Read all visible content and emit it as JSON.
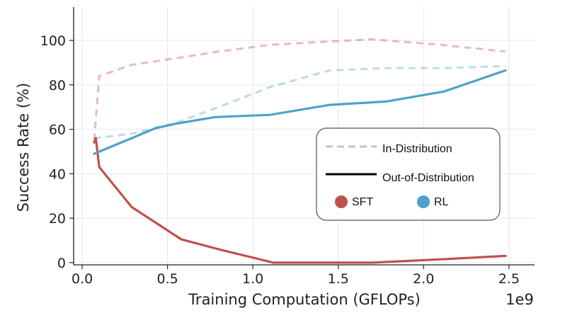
{
  "chart_data": {
    "type": "line",
    "xlabel": "Training Computation (GFLOPs)",
    "ylabel": "Success Rate (%)",
    "x_scale_label": "1e9",
    "xlim": [
      -0.05,
      2.65
    ],
    "ylim": [
      -1,
      115
    ],
    "xticks": [
      0.0,
      0.5,
      1.0,
      1.5,
      2.0,
      2.5
    ],
    "xtick_labels": [
      "0.0",
      "0.5",
      "1.0",
      "1.5",
      "2.0",
      "2.5"
    ],
    "yticks": [
      0,
      20,
      40,
      60,
      80,
      100
    ],
    "ytick_labels": [
      "0",
      "20",
      "40",
      "60",
      "80",
      "100"
    ],
    "grid": true,
    "colors": {
      "SFT": "#c0504d",
      "RL": "#4fa1c9"
    },
    "series": [
      {
        "method": "SFT",
        "split": "In-Distribution",
        "style": "dashed",
        "x": [
          0.07,
          0.1,
          0.29,
          0.55,
          0.8,
          1.1,
          1.45,
          1.7,
          2.1,
          2.48
        ],
        "y": [
          55,
          84,
          89,
          92,
          95,
          98,
          99.5,
          100.5,
          98,
          95
        ]
      },
      {
        "method": "SFT",
        "split": "Out-of-Distribution",
        "style": "solid",
        "x": [
          0.07,
          0.08,
          0.1,
          0.29,
          0.58,
          0.8,
          1.12,
          1.45,
          1.7,
          2.1,
          2.48
        ],
        "y": [
          54,
          56,
          43,
          25,
          10.5,
          6,
          0,
          0,
          0,
          1.5,
          3
        ]
      },
      {
        "method": "RL",
        "split": "In-Distribution",
        "style": "dashed",
        "x": [
          0.07,
          0.29,
          0.55,
          0.8,
          1.1,
          1.45,
          1.78,
          2.12,
          2.48
        ],
        "y": [
          56,
          58,
          63,
          70,
          79,
          86.5,
          87.5,
          87.5,
          88.5
        ]
      },
      {
        "method": "RL",
        "split": "Out-of-Distribution",
        "style": "solid",
        "x": [
          0.07,
          0.29,
          0.43,
          0.55,
          0.78,
          1.1,
          1.45,
          1.78,
          2.12,
          2.48
        ],
        "y": [
          49,
          56,
          60.5,
          62.5,
          65.5,
          66.5,
          71,
          72.5,
          77,
          86.5
        ]
      }
    ],
    "legend": {
      "placement": "right",
      "style_entries": [
        {
          "label": "In-Distribution",
          "style": "dashed"
        },
        {
          "label": "Out-of-Distribution",
          "style": "solid"
        }
      ],
      "color_entries": [
        {
          "label": "SFT",
          "color": "#c0504d"
        },
        {
          "label": "RL",
          "color": "#4fa1c9"
        }
      ]
    }
  }
}
